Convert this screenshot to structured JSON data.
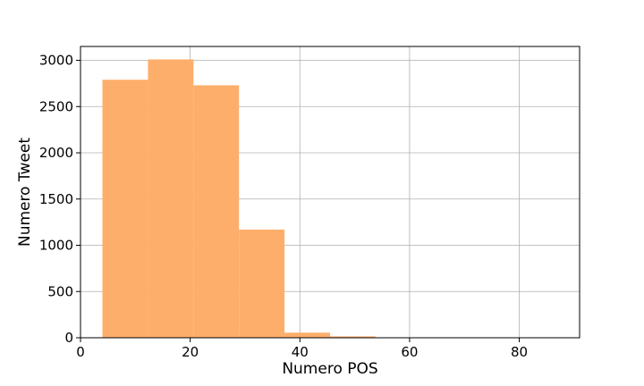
{
  "chart_data": {
    "type": "bar",
    "title": "",
    "xlabel": "Numero POS",
    "ylabel": "Numero Tweet",
    "xlim": [
      0,
      91
    ],
    "ylim": [
      0,
      3150
    ],
    "xticks": [
      0,
      20,
      40,
      60,
      80
    ],
    "yticks": [
      0,
      500,
      1000,
      1500,
      2000,
      2500,
      3000
    ],
    "grid": true,
    "bar_color": "#fdae6b",
    "bins": [
      {
        "x0": 4.0,
        "x1": 12.3,
        "value": 2790
      },
      {
        "x0": 12.3,
        "x1": 20.6,
        "value": 3010
      },
      {
        "x0": 20.6,
        "x1": 28.9,
        "value": 2730
      },
      {
        "x0": 28.9,
        "x1": 37.2,
        "value": 1170
      },
      {
        "x0": 37.2,
        "x1": 45.5,
        "value": 55
      },
      {
        "x0": 45.5,
        "x1": 53.8,
        "value": 15
      },
      {
        "x0": 53.8,
        "x1": 62.1,
        "value": 2
      },
      {
        "x0": 62.1,
        "x1": 70.4,
        "value": 1
      },
      {
        "x0": 70.4,
        "x1": 78.7,
        "value": 0
      },
      {
        "x0": 78.7,
        "x1": 87.0,
        "value": 1
      }
    ]
  }
}
